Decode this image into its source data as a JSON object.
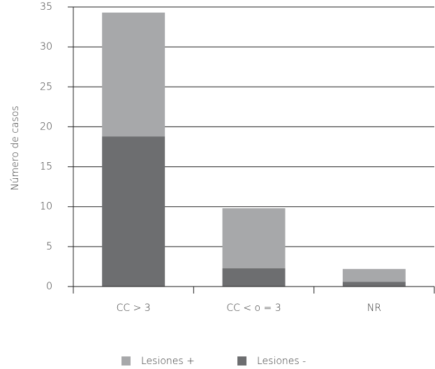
{
  "chart_data": {
    "type": "stacked_bar",
    "y_label": "Número de casos",
    "categories": [
      "CC > 3",
      "CC < o = 3",
      "NR"
    ],
    "series": [
      {
        "name": "Lesiones +",
        "color": "#a7a8aa",
        "values": [
          15.5,
          7.5,
          1.6
        ]
      },
      {
        "name": "Lesiones -",
        "color": "#6d6e70",
        "values": [
          18.8,
          2.3,
          0.6
        ]
      }
    ],
    "ylim": [
      0,
      35
    ],
    "yticks": [
      0,
      5,
      10,
      15,
      20,
      25,
      30,
      35
    ],
    "grid": true,
    "legend": "bottom"
  }
}
